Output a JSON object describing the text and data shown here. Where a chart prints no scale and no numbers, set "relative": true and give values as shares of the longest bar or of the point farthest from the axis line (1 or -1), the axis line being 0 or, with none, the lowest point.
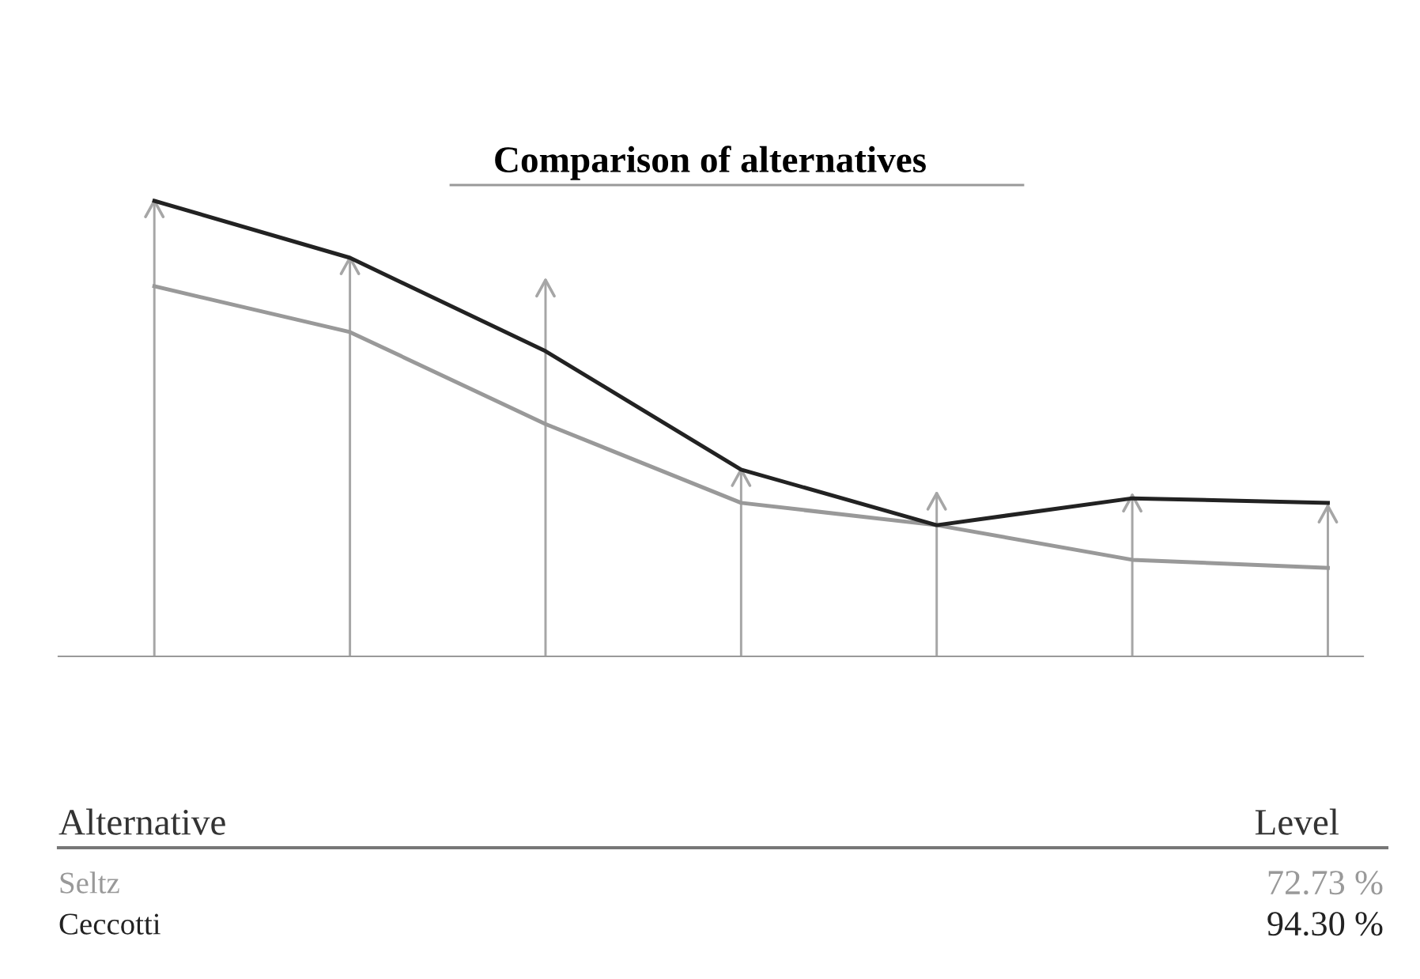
{
  "chart_data": [
    {
      "type": "line",
      "title": "Comparison of alternatives",
      "relative": true,
      "categories": [
        null,
        null,
        null,
        null,
        null,
        null,
        null
      ],
      "series": [
        {
          "name": "Seltz",
          "color": "#999999",
          "values": [
            0.8125,
            0.712,
            0.51,
            0.337,
            0.288,
            0.212,
            0.194
          ]
        },
        {
          "name": "Ceccotti",
          "color": "#222222",
          "values": [
            1.0,
            0.875,
            0.67,
            0.41,
            0.288,
            0.347,
            0.337
          ]
        }
      ],
      "annotations": [
        "Alternative",
        "Level",
        "72.73 %",
        "94.30 %"
      ]
    },
    {
      "type": "bar",
      "relative": true,
      "categories": [
        null,
        null,
        null,
        null,
        null,
        null,
        null
      ],
      "series": [
        {
          "color": "#a6a6a6",
          "values": [
            1.0,
            0.875,
            0.826,
            0.41,
            0.358,
            0.354,
            0.33
          ]
        }
      ]
    }
  ]
}
